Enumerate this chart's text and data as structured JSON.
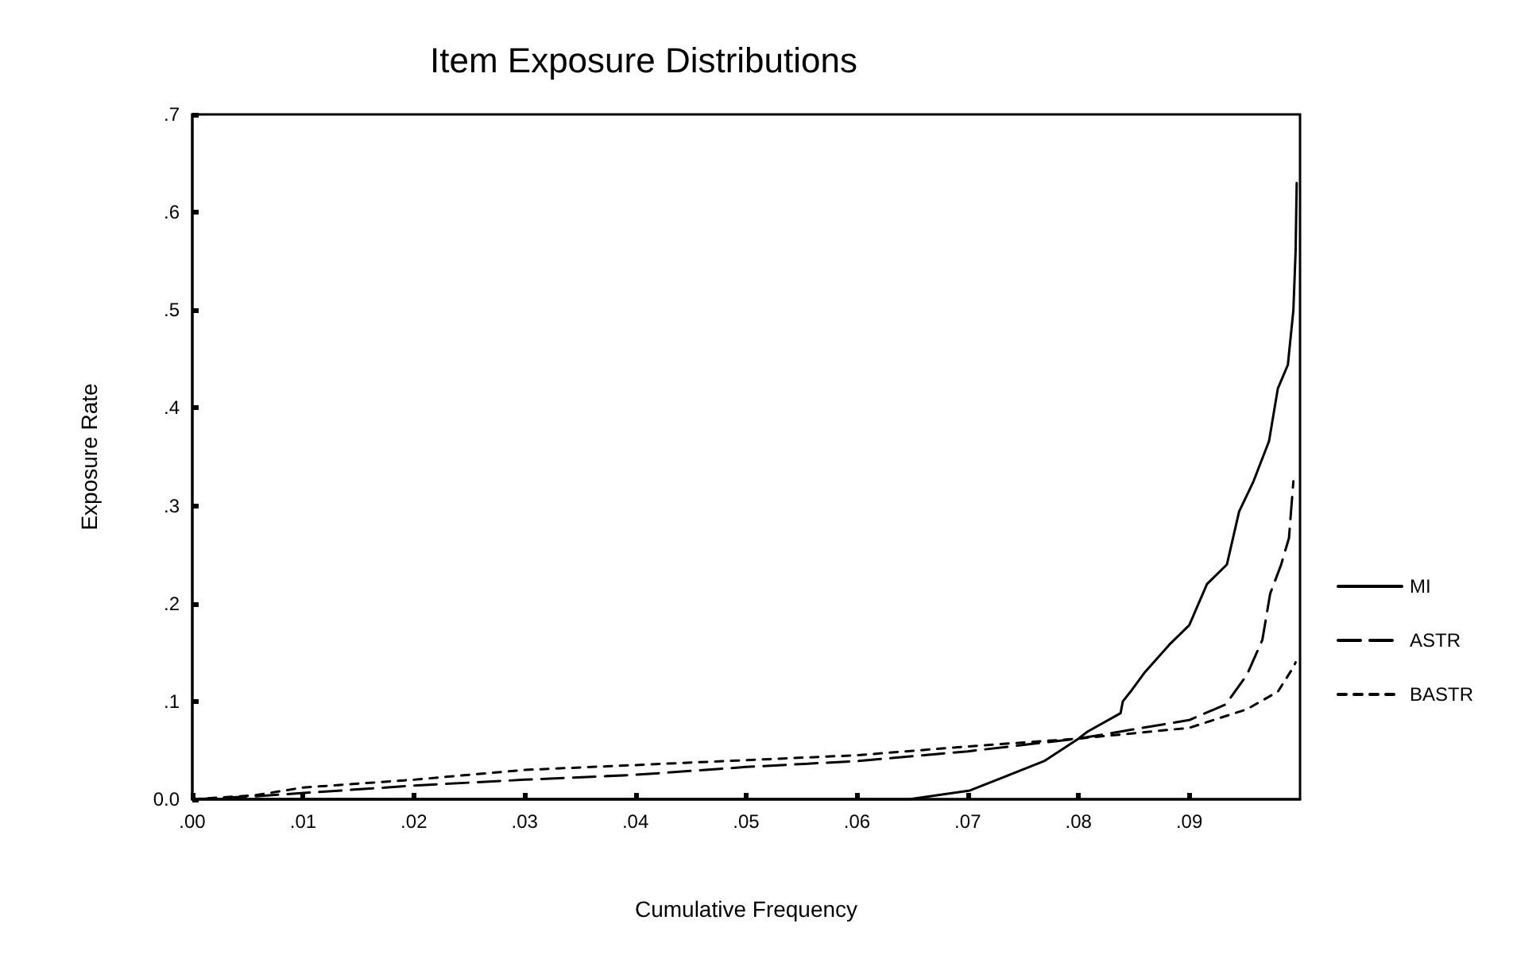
{
  "chart_data": {
    "type": "line",
    "title": "Item Exposure Distributions",
    "xlabel": "Cumulative Frequency",
    "ylabel": "Exposure Rate",
    "xlim": [
      0,
      0.1
    ],
    "xticks": [
      {
        "value": 0,
        "label": ".00"
      },
      {
        "value": 0.01,
        "label": ".01"
      },
      {
        "value": 0.02,
        "label": ".02"
      },
      {
        "value": 0.03,
        "label": ".03"
      },
      {
        "value": 0.04,
        "label": ".04"
      },
      {
        "value": 0.05,
        "label": ".05"
      },
      {
        "value": 0.06,
        "label": ".06"
      },
      {
        "value": 0.07,
        "label": ".07"
      },
      {
        "value": 0.08,
        "label": ".08"
      },
      {
        "value": 0.09,
        "label": ".09"
      }
    ],
    "ylim": [
      0,
      0.7
    ],
    "yticks": [
      {
        "value": 0,
        "label": "0.0"
      },
      {
        "value": 0.1,
        "label": ".1"
      },
      {
        "value": 0.2,
        "label": ".2"
      },
      {
        "value": 0.3,
        "label": ".3"
      },
      {
        "value": 0.4,
        "label": ".4"
      },
      {
        "value": 0.5,
        "label": ".5"
      },
      {
        "value": 0.6,
        "label": ".6"
      },
      {
        "value": 0.7,
        "label": ".7"
      }
    ],
    "grid": false,
    "legend": "right",
    "marker": "none",
    "series": [
      {
        "name": "MI",
        "color": "#000000",
        "line_style": "solid",
        "x": [
          0,
          0.0647,
          0.0702,
          0.0769,
          0.08,
          0.0808,
          0.0838,
          0.084,
          0.0847,
          0.086,
          0.0882,
          0.09,
          0.0916,
          0.0934,
          0.0945,
          0.0958,
          0.0972,
          0.098,
          0.0989,
          0.0994,
          0.0996,
          0.0997
        ],
        "values": [
          0,
          0,
          0.009,
          0.039,
          0.062,
          0.069,
          0.088,
          0.1,
          0.11,
          0.13,
          0.158,
          0.178,
          0.22,
          0.24,
          0.294,
          0.325,
          0.366,
          0.42,
          0.444,
          0.5,
          0.56,
          0.63
        ]
      },
      {
        "name": "ASTR",
        "color": "#000000",
        "line_style": "dashed",
        "x": [
          0,
          0.0056,
          0.02,
          0.03,
          0.04,
          0.05,
          0.06,
          0.07,
          0.08,
          0.09,
          0.0933,
          0.0952,
          0.0966,
          0.0973,
          0.0983,
          0.099,
          0.0994
        ],
        "values": [
          0,
          0.003,
          0.014,
          0.02,
          0.025,
          0.033,
          0.039,
          0.049,
          0.062,
          0.081,
          0.097,
          0.127,
          0.163,
          0.21,
          0.24,
          0.267,
          0.325
        ]
      },
      {
        "name": "BASTR",
        "color": "#000000",
        "line_style": "dotted",
        "x": [
          0,
          0.0056,
          0.01,
          0.02,
          0.03,
          0.04,
          0.05,
          0.06,
          0.07,
          0.08,
          0.09,
          0.0952,
          0.098,
          0.0994,
          0.0996
        ],
        "values": [
          0,
          0.004,
          0.012,
          0.02,
          0.03,
          0.035,
          0.04,
          0.045,
          0.054,
          0.062,
          0.073,
          0.092,
          0.11,
          0.135,
          0.14
        ]
      }
    ]
  }
}
